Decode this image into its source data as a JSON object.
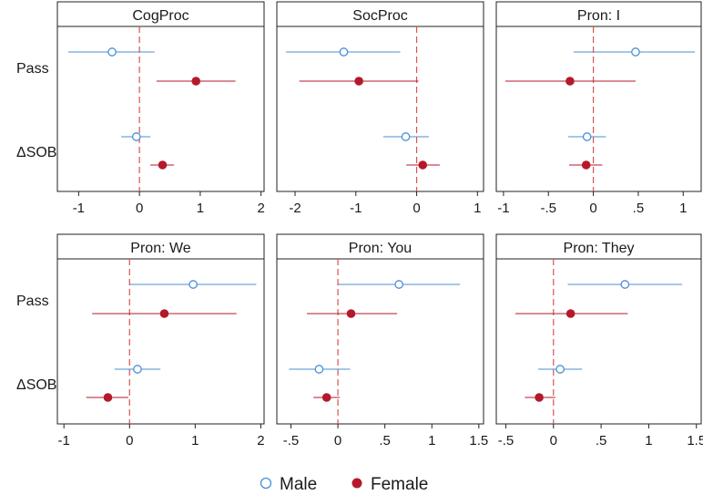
{
  "legend": {
    "male_label": "Male",
    "female_label": "Female"
  },
  "colors": {
    "male": "#4a8fd4",
    "female": "#b5182b",
    "zero_line": "#d9534f",
    "frame": "#222222"
  },
  "chart_data": [
    {
      "type": "scatter",
      "title": "CogProc",
      "rows": [
        "Pass",
        "ΔSOB"
      ],
      "xlim": [
        -1.35,
        2.05
      ],
      "x_ticks": [
        -1,
        0,
        1,
        2
      ],
      "x_tick_labels": [
        "-1",
        "0",
        "1",
        "2"
      ],
      "series": [
        {
          "name": "Male",
          "points": [
            {
              "row": "Pass",
              "estimate": -0.45,
              "ci": [
                -1.17,
                0.25
              ]
            },
            {
              "row": "ΔSOB",
              "estimate": -0.05,
              "ci": [
                -0.3,
                0.18
              ]
            }
          ]
        },
        {
          "name": "Female",
          "points": [
            {
              "row": "Pass",
              "estimate": 0.93,
              "ci": [
                0.28,
                1.58
              ]
            },
            {
              "row": "ΔSOB",
              "estimate": 0.38,
              "ci": [
                0.18,
                0.57
              ]
            }
          ]
        }
      ]
    },
    {
      "type": "scatter",
      "title": "SocProc",
      "rows": [
        "Pass",
        "ΔSOB"
      ],
      "xlim": [
        -2.3,
        1.1
      ],
      "x_ticks": [
        -2,
        -1,
        0,
        1
      ],
      "x_tick_labels": [
        "-2",
        "-1",
        "0",
        "1"
      ],
      "series": [
        {
          "name": "Male",
          "points": [
            {
              "row": "Pass",
              "estimate": -1.2,
              "ci": [
                -2.15,
                -0.27
              ]
            },
            {
              "row": "ΔSOB",
              "estimate": -0.18,
              "ci": [
                -0.55,
                0.2
              ]
            }
          ]
        },
        {
          "name": "Female",
          "points": [
            {
              "row": "Pass",
              "estimate": -0.95,
              "ci": [
                -1.93,
                0.03
              ]
            },
            {
              "row": "ΔSOB",
              "estimate": 0.1,
              "ci": [
                -0.17,
                0.38
              ]
            }
          ]
        }
      ]
    },
    {
      "type": "scatter",
      "title": "Pron: I",
      "rows": [
        "Pass",
        "ΔSOB"
      ],
      "xlim": [
        -1.08,
        1.2
      ],
      "x_ticks": [
        -1,
        -0.5,
        0,
        0.5,
        1
      ],
      "x_tick_labels": [
        "-1",
        "-.5",
        "0",
        ".5",
        "1"
      ],
      "series": [
        {
          "name": "Male",
          "points": [
            {
              "row": "Pass",
              "estimate": 0.47,
              "ci": [
                -0.22,
                1.13
              ]
            },
            {
              "row": "ΔSOB",
              "estimate": -0.07,
              "ci": [
                -0.28,
                0.14
              ]
            }
          ]
        },
        {
          "name": "Female",
          "points": [
            {
              "row": "Pass",
              "estimate": -0.26,
              "ci": [
                -0.98,
                0.47
              ]
            },
            {
              "row": "ΔSOB",
              "estimate": -0.08,
              "ci": [
                -0.27,
                0.1
              ]
            }
          ]
        }
      ]
    },
    {
      "type": "scatter",
      "title": "Pron: We",
      "rows": [
        "Pass",
        "ΔSOB"
      ],
      "xlim": [
        -1.1,
        2.05
      ],
      "x_ticks": [
        -1,
        0,
        1,
        2
      ],
      "x_tick_labels": [
        "-1",
        "0",
        "1",
        "2"
      ],
      "series": [
        {
          "name": "Male",
          "points": [
            {
              "row": "Pass",
              "estimate": 0.97,
              "ci": [
                0.0,
                1.93
              ]
            },
            {
              "row": "ΔSOB",
              "estimate": 0.12,
              "ci": [
                -0.23,
                0.47
              ]
            }
          ]
        },
        {
          "name": "Female",
          "points": [
            {
              "row": "Pass",
              "estimate": 0.53,
              "ci": [
                -0.57,
                1.63
              ]
            },
            {
              "row": "ΔSOB",
              "estimate": -0.33,
              "ci": [
                -0.66,
                -0.02
              ]
            }
          ]
        }
      ]
    },
    {
      "type": "scatter",
      "title": "Pron: You",
      "rows": [
        "Pass",
        "ΔSOB"
      ],
      "xlim": [
        -0.65,
        1.55
      ],
      "x_ticks": [
        -0.5,
        0,
        0.5,
        1,
        1.5
      ],
      "x_tick_labels": [
        "-.5",
        "0",
        ".5",
        "1",
        "1.5"
      ],
      "series": [
        {
          "name": "Male",
          "points": [
            {
              "row": "Pass",
              "estimate": 0.65,
              "ci": [
                0.0,
                1.3
              ]
            },
            {
              "row": "ΔSOB",
              "estimate": -0.2,
              "ci": [
                -0.52,
                0.13
              ]
            }
          ]
        },
        {
          "name": "Female",
          "points": [
            {
              "row": "Pass",
              "estimate": 0.14,
              "ci": [
                -0.33,
                0.63
              ]
            },
            {
              "row": "ΔSOB",
              "estimate": -0.12,
              "ci": [
                -0.26,
                0.02
              ]
            }
          ]
        }
      ]
    },
    {
      "type": "scatter",
      "title": "Pron: They",
      "rows": [
        "Pass",
        "ΔSOB"
      ],
      "xlim": [
        -0.6,
        1.55
      ],
      "x_ticks": [
        -0.5,
        0,
        0.5,
        1,
        1.5
      ],
      "x_tick_labels": [
        "-.5",
        "0",
        ".5",
        "1",
        "1.5"
      ],
      "series": [
        {
          "name": "Male",
          "points": [
            {
              "row": "Pass",
              "estimate": 0.75,
              "ci": [
                0.15,
                1.35
              ]
            },
            {
              "row": "ΔSOB",
              "estimate": 0.07,
              "ci": [
                -0.16,
                0.3
              ]
            }
          ]
        },
        {
          "name": "Female",
          "points": [
            {
              "row": "Pass",
              "estimate": 0.18,
              "ci": [
                -0.4,
                0.78
              ]
            },
            {
              "row": "ΔSOB",
              "estimate": -0.15,
              "ci": [
                -0.3,
                0.02
              ]
            }
          ]
        }
      ]
    }
  ]
}
